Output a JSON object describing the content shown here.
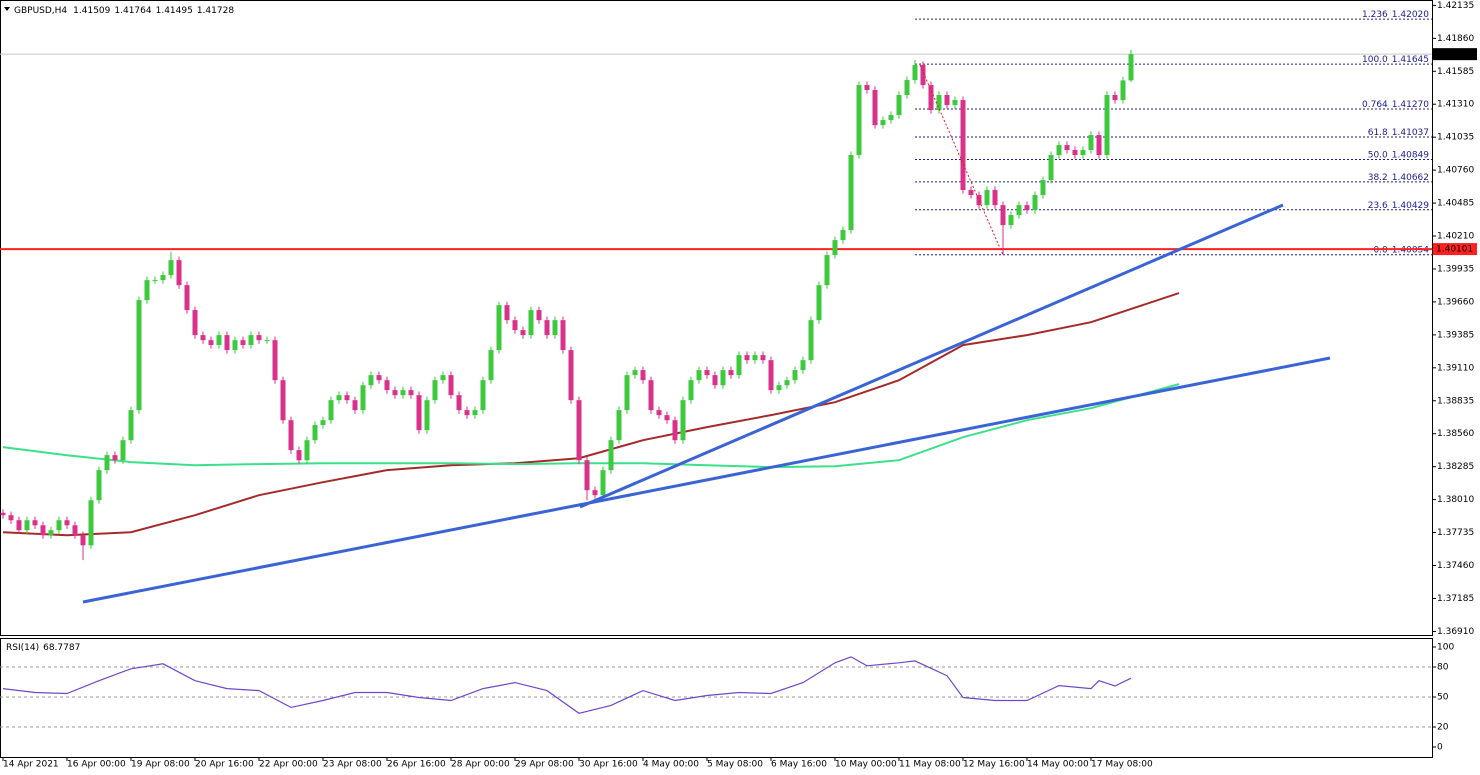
{
  "chart_data": [
    {
      "type": "candlestick",
      "symbol": "GBPUSD,H4",
      "up_color": "#3ec83e",
      "down_color": "#d8328a",
      "ylim": [
        1.3688,
        1.4218
      ],
      "xlim": [
        -0.375,
        178.625
      ],
      "yticks": [
        1.42135,
        {
          "value": 1.4186,
          "label": "1.41860"
        },
        1.41585,
        {
          "value": 1.4131,
          "label": "1.41310"
        },
        1.41035,
        {
          "value": 1.4076,
          "label": "1.40760"
        },
        1.40485,
        {
          "value": 1.4021,
          "label": "1.40210"
        },
        1.39935,
        {
          "value": 1.3966,
          "label": "1.39660"
        },
        1.39385,
        {
          "value": 1.3911,
          "label": "1.39110"
        },
        1.38835,
        {
          "value": 1.3856,
          "label": "1.38560"
        },
        1.38285,
        {
          "value": 1.3801,
          "label": "1.38010"
        },
        1.37735,
        {
          "value": 1.3746,
          "label": "1.37460"
        },
        1.37185,
        {
          "value": 1.3691,
          "label": "1.36910"
        }
      ],
      "xticks": [
        {
          "value": 0,
          "label": "14 Apr 2021"
        },
        {
          "value": 8,
          "label": "16 Apr 00:00"
        },
        {
          "value": 16,
          "label": "19 Apr 08:00"
        },
        {
          "value": 24,
          "label": "20 Apr 16:00"
        },
        {
          "value": 32,
          "label": "22 Apr 00:00"
        },
        {
          "value": 40,
          "label": "23 Apr 08:00"
        },
        {
          "value": 48,
          "label": "26 Apr 16:00"
        },
        {
          "value": 56,
          "label": "28 Apr 00:00"
        },
        {
          "value": 64,
          "label": "29 Apr 08:00"
        },
        {
          "value": 72,
          "label": "30 Apr 16:00"
        },
        {
          "value": 80,
          "label": "4 May 00:00"
        },
        {
          "value": 88,
          "label": "5 May 08:00"
        },
        {
          "value": 96,
          "label": "6 May 16:00"
        },
        {
          "value": 104,
          "label": "10 May 00:00"
        },
        {
          "value": 112,
          "label": "11 May 08:00"
        },
        {
          "value": 120,
          "label": "12 May 16:00"
        },
        {
          "value": 128,
          "label": "14 May 00:00"
        },
        {
          "value": 136,
          "label": "17 May 08:00"
        }
      ],
      "open": [
        1.379,
        1.3788,
        1.37838,
        1.37755,
        1.37838,
        1.37796,
        1.37713,
        1.37755,
        1.37838,
        1.37796,
        1.37713,
        1.37629,
        1.38005,
        1.38256,
        1.38381,
        1.38339,
        1.38506,
        1.38757,
        1.39675,
        1.39842,
        1.39842,
        1.39884,
        1.40009,
        1.398,
        1.39592,
        1.39383,
        1.39341,
        1.393,
        1.39383,
        1.39258,
        1.39341,
        1.393,
        1.39383,
        1.39341,
        1.39341,
        1.39007,
        1.38673,
        1.38423,
        1.38339,
        1.38506,
        1.38632,
        1.38673,
        1.3884,
        1.38882,
        1.3884,
        1.38757,
        1.38965,
        1.39049,
        1.39007,
        1.38924,
        1.38882,
        1.38924,
        1.38882,
        1.3859,
        1.3884,
        1.39007,
        1.39049,
        1.38882,
        1.38757,
        1.38715,
        1.38757,
        1.39007,
        1.39258,
        1.39633,
        1.39508,
        1.39425,
        1.39383,
        1.39592,
        1.39508,
        1.39383,
        1.39508,
        1.39258,
        1.3884,
        1.38339,
        1.38089,
        1.38047,
        1.38256,
        1.38506,
        1.38757,
        1.39049,
        1.39091,
        1.39007,
        1.38757,
        1.38715,
        1.38673,
        1.38506,
        1.3884,
        1.39007,
        1.39091,
        1.39049,
        1.38965,
        1.39091,
        1.39049,
        1.39216,
        1.39174,
        1.39216,
        1.39174,
        1.38924,
        1.38965,
        1.39007,
        1.39091,
        1.39174,
        1.39508,
        1.398,
        1.40051,
        1.40176,
        1.4026,
        1.40886,
        1.4147,
        1.41429,
        1.41136,
        1.41178,
        1.4122,
        1.41387,
        1.41512,
        1.41637,
        1.4147,
        1.41262,
        1.41387,
        1.41303,
        1.41345,
        1.40594,
        1.40552,
        1.40468,
        1.40594,
        1.40468,
        1.40301,
        1.40385,
        1.40468,
        1.40427,
        1.40552,
        1.40677,
        1.40886,
        1.40969,
        1.40928,
        1.40886,
        1.40928,
        1.41053,
        1.40886,
        1.41387,
        1.41345,
        1.41509
      ],
      "high": [
        1.3793,
        1.3791,
        1.37868,
        1.37868,
        1.37868,
        1.37826,
        1.37785,
        1.37868,
        1.37868,
        1.37826,
        1.37743,
        1.38035,
        1.38286,
        1.38411,
        1.38411,
        1.38536,
        1.38787,
        1.39705,
        1.39872,
        1.39872,
        1.39914,
        1.4008,
        1.40039,
        1.3983,
        1.39622,
        1.39413,
        1.39371,
        1.39413,
        1.39413,
        1.39371,
        1.39371,
        1.39413,
        1.39413,
        1.39371,
        1.39371,
        1.39037,
        1.38703,
        1.38453,
        1.38536,
        1.38662,
        1.38703,
        1.3887,
        1.38912,
        1.38912,
        1.3887,
        1.38995,
        1.39079,
        1.39079,
        1.39037,
        1.38954,
        1.38954,
        1.38954,
        1.38912,
        1.3887,
        1.39037,
        1.39079,
        1.39079,
        1.38912,
        1.38787,
        1.38787,
        1.39037,
        1.39288,
        1.39663,
        1.39663,
        1.39538,
        1.39455,
        1.39622,
        1.39622,
        1.39538,
        1.39538,
        1.39538,
        1.39288,
        1.3887,
        1.38369,
        1.38119,
        1.38286,
        1.38536,
        1.38787,
        1.39079,
        1.39121,
        1.39121,
        1.39037,
        1.38787,
        1.38745,
        1.38703,
        1.3887,
        1.39037,
        1.39121,
        1.39121,
        1.39079,
        1.39121,
        1.39121,
        1.39246,
        1.39246,
        1.39246,
        1.39246,
        1.39204,
        1.38995,
        1.39037,
        1.39121,
        1.39204,
        1.39538,
        1.3983,
        1.40081,
        1.40206,
        1.4029,
        1.40916,
        1.415,
        1.415,
        1.41459,
        1.41208,
        1.4125,
        1.41417,
        1.41542,
        1.4168,
        1.41667,
        1.415,
        1.41417,
        1.41417,
        1.41375,
        1.41375,
        1.40624,
        1.40582,
        1.40624,
        1.40624,
        1.40498,
        1.40415,
        1.40498,
        1.40498,
        1.40582,
        1.40707,
        1.40916,
        1.40999,
        1.40999,
        1.40958,
        1.40958,
        1.41083,
        1.41083,
        1.41417,
        1.41417,
        1.41539,
        1.41764
      ],
      "low": [
        1.3785,
        1.37808,
        1.37725,
        1.37725,
        1.37766,
        1.37683,
        1.37683,
        1.37725,
        1.37766,
        1.37683,
        1.37505,
        1.37599,
        1.37975,
        1.38226,
        1.38309,
        1.38309,
        1.38476,
        1.38727,
        1.39645,
        1.39812,
        1.39812,
        1.39854,
        1.3977,
        1.39562,
        1.39353,
        1.39311,
        1.3927,
        1.3927,
        1.39228,
        1.39228,
        1.3927,
        1.3927,
        1.39311,
        1.39311,
        1.38977,
        1.38643,
        1.38393,
        1.38309,
        1.38309,
        1.38476,
        1.38602,
        1.38643,
        1.3881,
        1.3881,
        1.38727,
        1.38727,
        1.38935,
        1.38977,
        1.38894,
        1.38852,
        1.38852,
        1.38852,
        1.3856,
        1.3856,
        1.3881,
        1.38977,
        1.38852,
        1.38727,
        1.38685,
        1.38685,
        1.38727,
        1.38977,
        1.39228,
        1.39478,
        1.39395,
        1.39353,
        1.39353,
        1.39478,
        1.39353,
        1.39353,
        1.39228,
        1.3881,
        1.38309,
        1.38005,
        1.38017,
        1.38017,
        1.38226,
        1.38476,
        1.38727,
        1.39019,
        1.38977,
        1.38727,
        1.38685,
        1.38643,
        1.38476,
        1.38476,
        1.3881,
        1.38977,
        1.39019,
        1.38935,
        1.38935,
        1.39019,
        1.39019,
        1.39144,
        1.39144,
        1.39144,
        1.38894,
        1.38894,
        1.38935,
        1.38977,
        1.39061,
        1.39144,
        1.39478,
        1.3977,
        1.40021,
        1.40146,
        1.4023,
        1.40856,
        1.41399,
        1.41106,
        1.41106,
        1.41148,
        1.4119,
        1.41357,
        1.41482,
        1.4144,
        1.41232,
        1.41232,
        1.41273,
        1.41273,
        1.40564,
        1.40522,
        1.40438,
        1.40438,
        1.40438,
        1.40054,
        1.40271,
        1.40355,
        1.40397,
        1.40397,
        1.40522,
        1.40647,
        1.40856,
        1.40898,
        1.40856,
        1.40856,
        1.40898,
        1.40856,
        1.40856,
        1.41315,
        1.41315,
        1.41495
      ],
      "close": [
        1.3788,
        1.37838,
        1.37755,
        1.37838,
        1.37796,
        1.37713,
        1.37755,
        1.37838,
        1.37796,
        1.37713,
        1.37629,
        1.38005,
        1.38256,
        1.38381,
        1.38339,
        1.38506,
        1.38757,
        1.39675,
        1.39842,
        1.39842,
        1.39884,
        1.40009,
        1.398,
        1.39592,
        1.39383,
        1.39341,
        1.393,
        1.39383,
        1.39258,
        1.39341,
        1.393,
        1.39383,
        1.39341,
        1.39341,
        1.39007,
        1.38673,
        1.38423,
        1.38339,
        1.38506,
        1.38632,
        1.38673,
        1.3884,
        1.38882,
        1.3884,
        1.38757,
        1.38965,
        1.39049,
        1.39007,
        1.38924,
        1.38882,
        1.38924,
        1.38882,
        1.3859,
        1.3884,
        1.39007,
        1.39049,
        1.38882,
        1.38757,
        1.38715,
        1.38757,
        1.39007,
        1.39258,
        1.39633,
        1.39508,
        1.39425,
        1.39383,
        1.39592,
        1.39508,
        1.39383,
        1.39508,
        1.39258,
        1.3884,
        1.38339,
        1.38089,
        1.38047,
        1.38256,
        1.38506,
        1.38757,
        1.39049,
        1.39091,
        1.39007,
        1.38757,
        1.38715,
        1.38673,
        1.38506,
        1.3884,
        1.39007,
        1.39091,
        1.39049,
        1.38965,
        1.39091,
        1.39049,
        1.39216,
        1.39174,
        1.39216,
        1.39174,
        1.38924,
        1.38965,
        1.39007,
        1.39091,
        1.39174,
        1.39508,
        1.398,
        1.40051,
        1.40176,
        1.4026,
        1.40886,
        1.4147,
        1.41429,
        1.41136,
        1.41178,
        1.4122,
        1.41387,
        1.41512,
        1.41637,
        1.4147,
        1.41262,
        1.41387,
        1.41303,
        1.41345,
        1.40594,
        1.40552,
        1.40468,
        1.40594,
        1.40468,
        1.40301,
        1.40385,
        1.40468,
        1.40427,
        1.40552,
        1.40677,
        1.40886,
        1.40969,
        1.40928,
        1.40886,
        1.40928,
        1.41053,
        1.40886,
        1.41387,
        1.41345,
        1.41509,
        1.41728
      ],
      "ma": [
        {
          "color": "#a52a2a",
          "x": [
            0,
            8,
            16,
            24,
            32,
            40,
            48,
            56,
            64,
            72,
            80,
            88,
            96,
            104,
            112,
            120,
            128,
            136,
            147
          ],
          "values": [
            1.37738,
            1.37713,
            1.37738,
            1.3788,
            1.38047,
            1.38155,
            1.38256,
            1.38297,
            1.38314,
            1.38356,
            1.38506,
            1.38615,
            1.38715,
            1.38823,
            1.39007,
            1.393,
            1.39383,
            1.39491,
            1.39734
          ]
        },
        {
          "color": "#3ce08a",
          "x": [
            0,
            8,
            16,
            24,
            32,
            40,
            48,
            56,
            64,
            72,
            80,
            88,
            96,
            104,
            112,
            120,
            128,
            136,
            147
          ],
          "values": [
            1.38448,
            1.38381,
            1.38323,
            1.38297,
            1.38306,
            1.38314,
            1.38314,
            1.38314,
            1.38306,
            1.38314,
            1.38314,
            1.38297,
            1.38281,
            1.38289,
            1.38339,
            1.38531,
            1.38673,
            1.38773,
            1.38974
          ]
        }
      ],
      "fibonacci": {
        "color": "#1c1c96",
        "levels": [
          {
            "ratio": "1.236",
            "price": {
              "value": 1.4202,
              "label": "1.42020"
            }
          },
          {
            "ratio": "100.0",
            "price": 1.41645
          },
          {
            "ratio": "0.764",
            "price": {
              "value": 1.4127,
              "label": "1.41270"
            }
          },
          {
            "ratio": "61.8",
            "price": 1.41037
          },
          {
            "ratio": "50.0",
            "price": 1.40849
          },
          {
            "ratio": "38.2",
            "price": 1.40662
          },
          {
            "ratio": "23.6",
            "price": 1.40429
          },
          {
            "ratio": "0.0",
            "price": 1.40054
          }
        ]
      },
      "hline": {
        "value": 1.40101,
        "color": "#ff2020"
      }
    },
    {
      "type": "line",
      "title": "RSI(14)",
      "current": 68.7787,
      "color": "#7048c8",
      "ylim": [
        -10,
        109
      ],
      "yticks": [
        100,
        80,
        50,
        20,
        0
      ],
      "levels": [
        80,
        50,
        20
      ],
      "x": [
        0,
        4,
        8,
        12,
        16,
        20,
        24,
        28,
        32,
        36,
        40,
        44,
        48,
        52,
        56,
        60,
        64,
        68,
        72,
        76,
        80,
        84,
        88,
        92,
        96,
        100,
        104,
        106,
        108,
        112,
        114,
        118,
        120,
        124,
        128,
        132,
        136,
        137,
        139,
        141
      ],
      "values": [
        58.4,
        54.5,
        53.5,
        66.3,
        78.2,
        83.2,
        66.3,
        58.4,
        56.4,
        39.6,
        46.5,
        54.5,
        54.5,
        49.5,
        46.5,
        58.4,
        64.4,
        56.4,
        33.7,
        41.6,
        56.4,
        46.5,
        51.5,
        54.5,
        53.5,
        64.4,
        84.2,
        90.1,
        81.2,
        84.2,
        86.1,
        71.3,
        49.5,
        46.5,
        46.5,
        61.4,
        58.4,
        66.3,
        61,
        68.8
      ]
    }
  ]
}
